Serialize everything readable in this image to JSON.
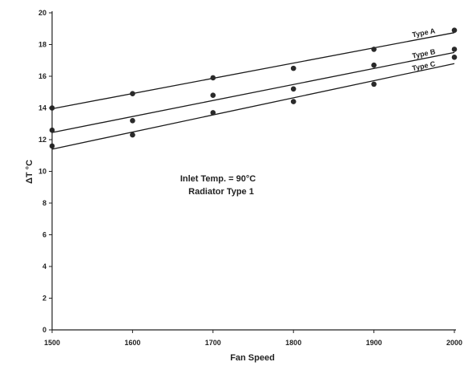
{
  "chart_data": {
    "type": "scatter",
    "xlabel": "Fan Speed",
    "ylabel": "ΔT  °C",
    "xlim": [
      1500,
      2000
    ],
    "ylim": [
      0,
      20
    ],
    "x_ticks": [
      1500,
      1600,
      1700,
      1800,
      1900,
      2000
    ],
    "y_ticks": [
      0,
      2,
      4,
      6,
      8,
      10,
      12,
      14,
      16,
      18,
      20
    ],
    "y_tick_labels": [
      "0",
      "2",
      "4",
      "6",
      "8",
      "10",
      "12",
      "14",
      "16",
      "18",
      "20"
    ],
    "grid": false,
    "annotations": [
      "Inlet Temp. = 90°C",
      "Radiator Type 1"
    ],
    "series": [
      {
        "name": "Type A",
        "x": [
          1500,
          1600,
          1700,
          1800,
          1900,
          2000
        ],
        "y": [
          14.0,
          14.9,
          15.9,
          16.5,
          17.7,
          18.9
        ],
        "fit": [
          [
            1500,
            13.95
          ],
          [
            2000,
            18.75
          ]
        ]
      },
      {
        "name": "Type B",
        "x": [
          1500,
          1600,
          1700,
          1800,
          1900,
          2000
        ],
        "y": [
          12.6,
          13.2,
          14.8,
          15.2,
          16.7,
          17.7
        ],
        "fit": [
          [
            1500,
            12.45
          ],
          [
            2000,
            17.5
          ]
        ]
      },
      {
        "name": "Type C",
        "x": [
          1500,
          1600,
          1700,
          1800,
          1900,
          2000
        ],
        "y": [
          11.6,
          12.3,
          13.7,
          14.4,
          15.5,
          17.2
        ],
        "fit": [
          [
            1500,
            11.4
          ],
          [
            2000,
            16.8
          ]
        ]
      }
    ]
  }
}
